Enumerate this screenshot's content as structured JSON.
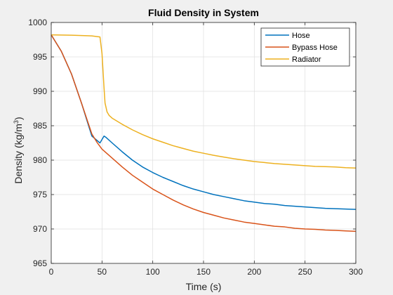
{
  "chart_data": {
    "type": "line",
    "title": "Fluid Density in System",
    "xlabel": "Time (s)",
    "ylabel": "Density (kg/m",
    "ylabel_sup": "3",
    "ylabel_close": ")",
    "xlim": [
      0,
      300
    ],
    "ylim": [
      965,
      1000
    ],
    "xticks": [
      0,
      50,
      100,
      150,
      200,
      250,
      300
    ],
    "yticks": [
      965,
      970,
      975,
      980,
      985,
      990,
      995,
      1000
    ],
    "grid": true,
    "legend_position": "top-right",
    "series": [
      {
        "name": "Hose",
        "color": "#0072BD",
        "points": [
          [
            0,
            998.2
          ],
          [
            10,
            995.8
          ],
          [
            20,
            992.5
          ],
          [
            30,
            988.2
          ],
          [
            40,
            983.5
          ],
          [
            48,
            982.5
          ],
          [
            50,
            983.0
          ],
          [
            52,
            983.5
          ],
          [
            54,
            983.3
          ],
          [
            60,
            982.5
          ],
          [
            70,
            981.2
          ],
          [
            80,
            980.0
          ],
          [
            90,
            979.0
          ],
          [
            100,
            978.2
          ],
          [
            110,
            977.5
          ],
          [
            120,
            976.9
          ],
          [
            130,
            976.3
          ],
          [
            140,
            975.8
          ],
          [
            150,
            975.4
          ],
          [
            160,
            975.0
          ],
          [
            170,
            974.7
          ],
          [
            180,
            974.4
          ],
          [
            190,
            974.1
          ],
          [
            200,
            973.9
          ],
          [
            210,
            973.7
          ],
          [
            220,
            973.6
          ],
          [
            230,
            973.4
          ],
          [
            240,
            973.3
          ],
          [
            250,
            973.2
          ],
          [
            260,
            973.1
          ],
          [
            270,
            973.0
          ],
          [
            280,
            972.95
          ],
          [
            290,
            972.9
          ],
          [
            300,
            972.85
          ]
        ]
      },
      {
        "name": "Bypass Hose",
        "color": "#D95319",
        "points": [
          [
            0,
            998.2
          ],
          [
            10,
            995.8
          ],
          [
            20,
            992.5
          ],
          [
            30,
            988.2
          ],
          [
            40,
            983.8
          ],
          [
            45,
            982.6
          ],
          [
            50,
            981.6
          ],
          [
            60,
            980.3
          ],
          [
            70,
            979.0
          ],
          [
            80,
            977.8
          ],
          [
            90,
            976.8
          ],
          [
            100,
            975.8
          ],
          [
            110,
            975.0
          ],
          [
            120,
            974.2
          ],
          [
            130,
            973.5
          ],
          [
            140,
            972.9
          ],
          [
            150,
            972.4
          ],
          [
            160,
            972.0
          ],
          [
            170,
            971.6
          ],
          [
            180,
            971.3
          ],
          [
            190,
            971.0
          ],
          [
            200,
            970.8
          ],
          [
            210,
            970.6
          ],
          [
            220,
            970.4
          ],
          [
            230,
            970.3
          ],
          [
            240,
            970.1
          ],
          [
            250,
            970.0
          ],
          [
            260,
            969.95
          ],
          [
            270,
            969.85
          ],
          [
            280,
            969.8
          ],
          [
            290,
            969.72
          ],
          [
            300,
            969.65
          ]
        ]
      },
      {
        "name": "Radiator",
        "color": "#EDB120",
        "points": [
          [
            0,
            998.2
          ],
          [
            20,
            998.15
          ],
          [
            40,
            998.05
          ],
          [
            48,
            997.9
          ],
          [
            50,
            995.5
          ],
          [
            51,
            993.0
          ],
          [
            52,
            990.5
          ],
          [
            53,
            988.3
          ],
          [
            55,
            987.0
          ],
          [
            57,
            986.5
          ],
          [
            60,
            986.1
          ],
          [
            70,
            985.2
          ],
          [
            80,
            984.4
          ],
          [
            90,
            983.7
          ],
          [
            100,
            983.1
          ],
          [
            110,
            982.6
          ],
          [
            120,
            982.1
          ],
          [
            130,
            981.7
          ],
          [
            140,
            981.3
          ],
          [
            150,
            981.0
          ],
          [
            160,
            980.7
          ],
          [
            170,
            980.45
          ],
          [
            180,
            980.2
          ],
          [
            190,
            980.0
          ],
          [
            200,
            979.8
          ],
          [
            210,
            979.65
          ],
          [
            220,
            979.5
          ],
          [
            230,
            979.4
          ],
          [
            240,
            979.3
          ],
          [
            250,
            979.2
          ],
          [
            260,
            979.1
          ],
          [
            270,
            979.05
          ],
          [
            280,
            979.0
          ],
          [
            290,
            978.9
          ],
          [
            300,
            978.85
          ]
        ]
      }
    ]
  }
}
